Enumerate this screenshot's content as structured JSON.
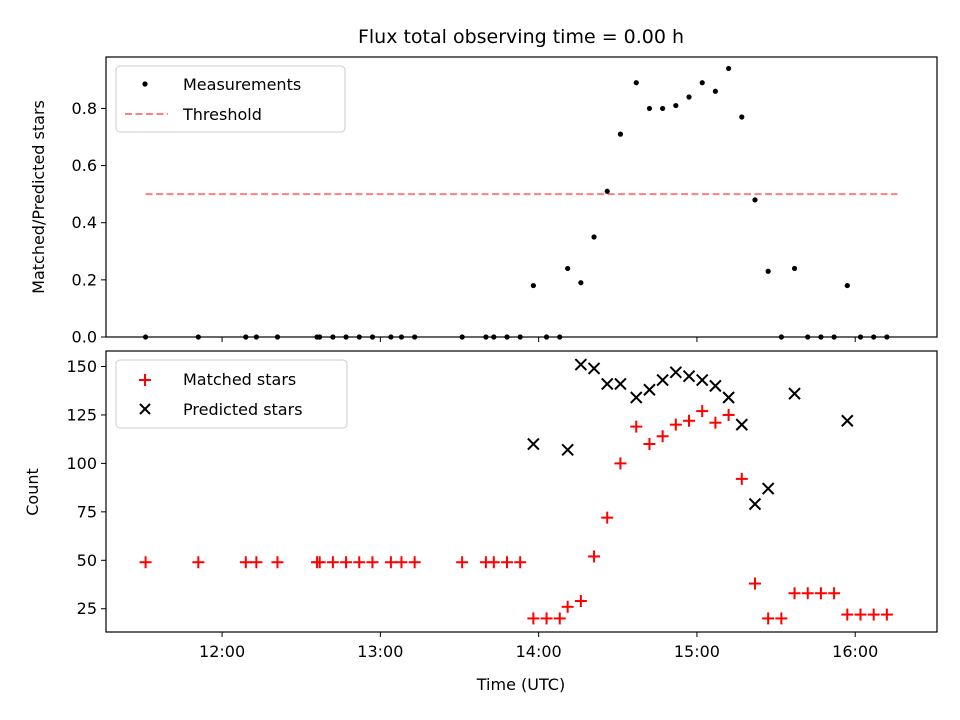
{
  "chart_data": [
    {
      "type": "scatter",
      "title": "Flux total observing time = 0.00 h",
      "xlabel": "",
      "ylabel": "Matched/Predicted stars",
      "ylim": [
        0,
        0.98
      ],
      "yticks": [
        0.0,
        0.2,
        0.4,
        0.6,
        0.8
      ],
      "ytick_labels": [
        "0.0",
        "0.2",
        "0.4",
        "0.6",
        "0.8"
      ],
      "xlim": [
        "11:16",
        "16:31"
      ],
      "legend": {
        "position": "top-left",
        "entries": [
          "Measurements",
          "Threshold"
        ]
      },
      "series": [
        {
          "name": "Measurements",
          "marker": "dot",
          "color": "#000000",
          "x": [
            "11:31",
            "11:51",
            "12:09",
            "12:13",
            "12:21",
            "12:36",
            "12:37",
            "12:42",
            "12:47",
            "12:52",
            "12:57",
            "13:04",
            "13:08",
            "13:13",
            "13:31",
            "13:40",
            "13:43",
            "13:48",
            "13:53",
            "13:58",
            "14:03",
            "14:08",
            "14:11",
            "14:16",
            "14:21",
            "14:26",
            "14:31",
            "14:37",
            "14:42",
            "14:47",
            "14:52",
            "14:57",
            "15:02",
            "15:07",
            "15:12",
            "15:17",
            "15:22",
            "15:27",
            "15:32",
            "15:37",
            "15:42",
            "15:47",
            "15:52",
            "15:57",
            "16:02",
            "16:07",
            "16:12"
          ],
          "y": [
            0.0,
            0.0,
            0.0,
            0.0,
            0.0,
            0.0,
            0.0,
            0.0,
            0.0,
            0.0,
            0.0,
            0.0,
            0.0,
            0.0,
            0.0,
            0.0,
            0.0,
            0.0,
            0.0,
            0.18,
            0.0,
            0.0,
            0.24,
            0.19,
            0.35,
            0.51,
            0.71,
            0.89,
            0.8,
            0.8,
            0.81,
            0.84,
            0.89,
            0.86,
            0.94,
            0.77,
            0.48,
            0.23,
            0.0,
            0.24,
            0.0,
            0.0,
            0.0,
            0.18,
            0.0,
            0.0,
            0.0
          ]
        },
        {
          "name": "Threshold",
          "style": "dashed",
          "color": "#ff7f7f",
          "x": [
            "11:31",
            "16:16"
          ],
          "y": [
            0.5,
            0.5
          ]
        }
      ]
    },
    {
      "type": "scatter",
      "title": "",
      "xlabel": "Time (UTC)",
      "ylabel": "Count",
      "ylim": [
        13,
        158
      ],
      "yticks": [
        25,
        50,
        75,
        100,
        125,
        150
      ],
      "ytick_labels": [
        "25",
        "50",
        "75",
        "100",
        "125",
        "150"
      ],
      "xlim": [
        "11:16",
        "16:31"
      ],
      "xticks": [
        "12:00",
        "13:00",
        "14:00",
        "15:00",
        "16:00"
      ],
      "xtick_labels": [
        "12:00",
        "13:00",
        "14:00",
        "15:00",
        "16:00"
      ],
      "legend": {
        "position": "top-left",
        "entries": [
          "Matched stars",
          "Predicted stars"
        ]
      },
      "series": [
        {
          "name": "Matched stars",
          "marker": "plus",
          "color": "#ff0000",
          "x": [
            "11:31",
            "11:51",
            "12:09",
            "12:13",
            "12:21",
            "12:36",
            "12:37",
            "12:42",
            "12:47",
            "12:52",
            "12:57",
            "13:04",
            "13:08",
            "13:13",
            "13:31",
            "13:40",
            "13:43",
            "13:48",
            "13:53",
            "13:58",
            "14:03",
            "14:08",
            "14:11",
            "14:16",
            "14:21",
            "14:26",
            "14:31",
            "14:37",
            "14:42",
            "14:47",
            "14:52",
            "14:57",
            "15:02",
            "15:07",
            "15:12",
            "15:17",
            "15:22",
            "15:27",
            "15:32",
            "15:37",
            "15:42",
            "15:47",
            "15:52",
            "15:57",
            "16:02",
            "16:07",
            "16:12"
          ],
          "y": [
            49,
            49,
            49,
            49,
            49,
            49,
            49,
            49,
            49,
            49,
            49,
            49,
            49,
            49,
            49,
            49,
            49,
            49,
            49,
            20,
            20,
            20,
            26,
            29,
            52,
            72,
            100,
            119,
            110,
            114,
            120,
            122,
            127,
            121,
            125,
            92,
            38,
            20,
            20,
            33,
            33,
            33,
            33,
            22,
            22,
            22,
            22
          ]
        },
        {
          "name": "Predicted stars",
          "marker": "x",
          "color": "#000000",
          "x": [
            "13:58",
            "14:11",
            "14:16",
            "14:21",
            "14:26",
            "14:31",
            "14:37",
            "14:42",
            "14:47",
            "14:52",
            "14:57",
            "15:02",
            "15:07",
            "15:12",
            "15:17",
            "15:22",
            "15:27",
            "15:37",
            "15:57"
          ],
          "y": [
            110,
            107,
            151,
            149,
            141,
            141,
            134,
            138,
            143,
            147,
            145,
            143,
            140,
            134,
            120,
            79,
            87,
            136,
            122
          ]
        }
      ]
    }
  ]
}
